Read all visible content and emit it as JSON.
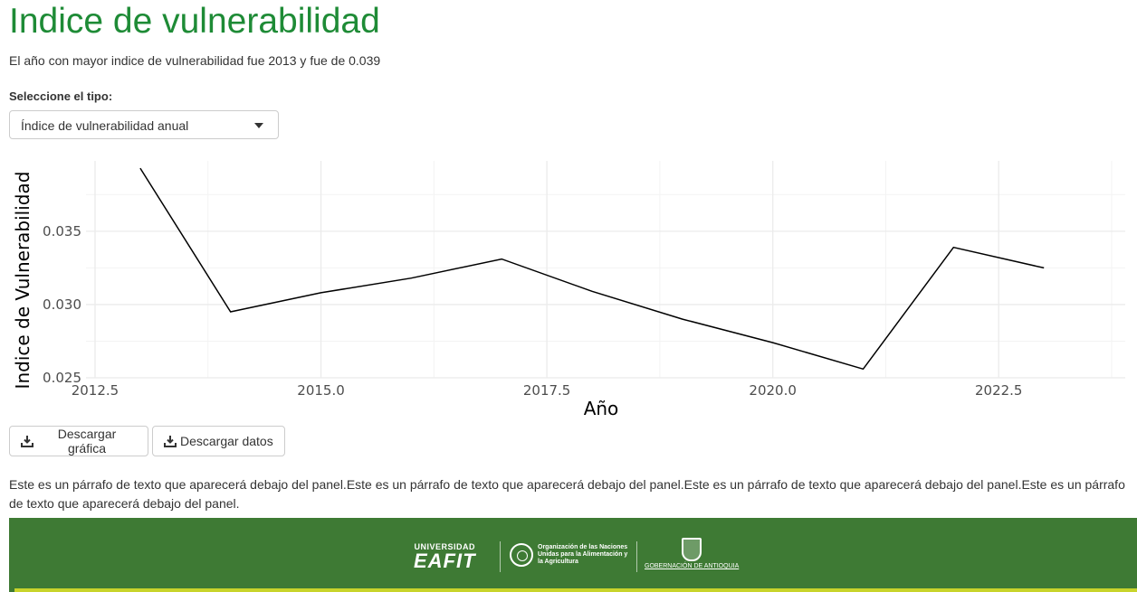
{
  "page": {
    "title": "Indice de vulnerabilidad",
    "summary": "El año con mayor indice de vulnerabilidad fue 2013 y fue de 0.039"
  },
  "selector": {
    "label": "Seleccione el tipo:",
    "selected": "Índice de vulnerabilidad anual"
  },
  "chart_data": {
    "type": "line",
    "xlabel": "Año",
    "ylabel": "Indice de Vulnerabilidad",
    "x": [
      2013,
      2014,
      2015,
      2016,
      2017,
      2018,
      2019,
      2020,
      2021,
      2022,
      2023
    ],
    "values": [
      0.0393,
      0.0295,
      0.0308,
      0.0318,
      0.0331,
      0.0309,
      0.029,
      0.0274,
      0.0256,
      0.0339,
      0.0325
    ],
    "xlim": [
      2012.4,
      2023.9
    ],
    "ylim": [
      0.025,
      0.0398
    ],
    "x_ticks": [
      2012.5,
      2015.0,
      2017.5,
      2020.0,
      2022.5
    ],
    "x_tick_labels": [
      "2012.5",
      "2015.0",
      "2017.5",
      "2020.0",
      "2022.5"
    ],
    "y_ticks": [
      0.025,
      0.03,
      0.035
    ],
    "y_tick_labels": [
      "0.025",
      "0.030",
      "0.035"
    ],
    "grid": true,
    "line_color": "#000000",
    "grid_color": "#ebebeb"
  },
  "buttons": {
    "download_plot": "Descargar gráfica",
    "download_data": "Descargar datos"
  },
  "paragraph": "Este es un párrafo de texto que aparecerá debajo del panel.Este es un párrafo de texto que aparecerá debajo del panel.Este es un párrafo de texto que aparecerá debajo del panel.Este es un párrafo de texto que aparecerá debajo del panel.",
  "footer": {
    "eafit_line1": "UNIVERSIDAD",
    "eafit_line2": "EAFIT",
    "fao_text": "Organización de las Naciones Unidas para la Alimentación y la Agricultura",
    "gov_text": "GOBERNACIÓN DE ANTIOQUIA",
    "background_color": "#3e7a34",
    "stripe_color": "#c8d42b"
  },
  "colors": {
    "title": "#1e8b36",
    "text": "#333333"
  }
}
